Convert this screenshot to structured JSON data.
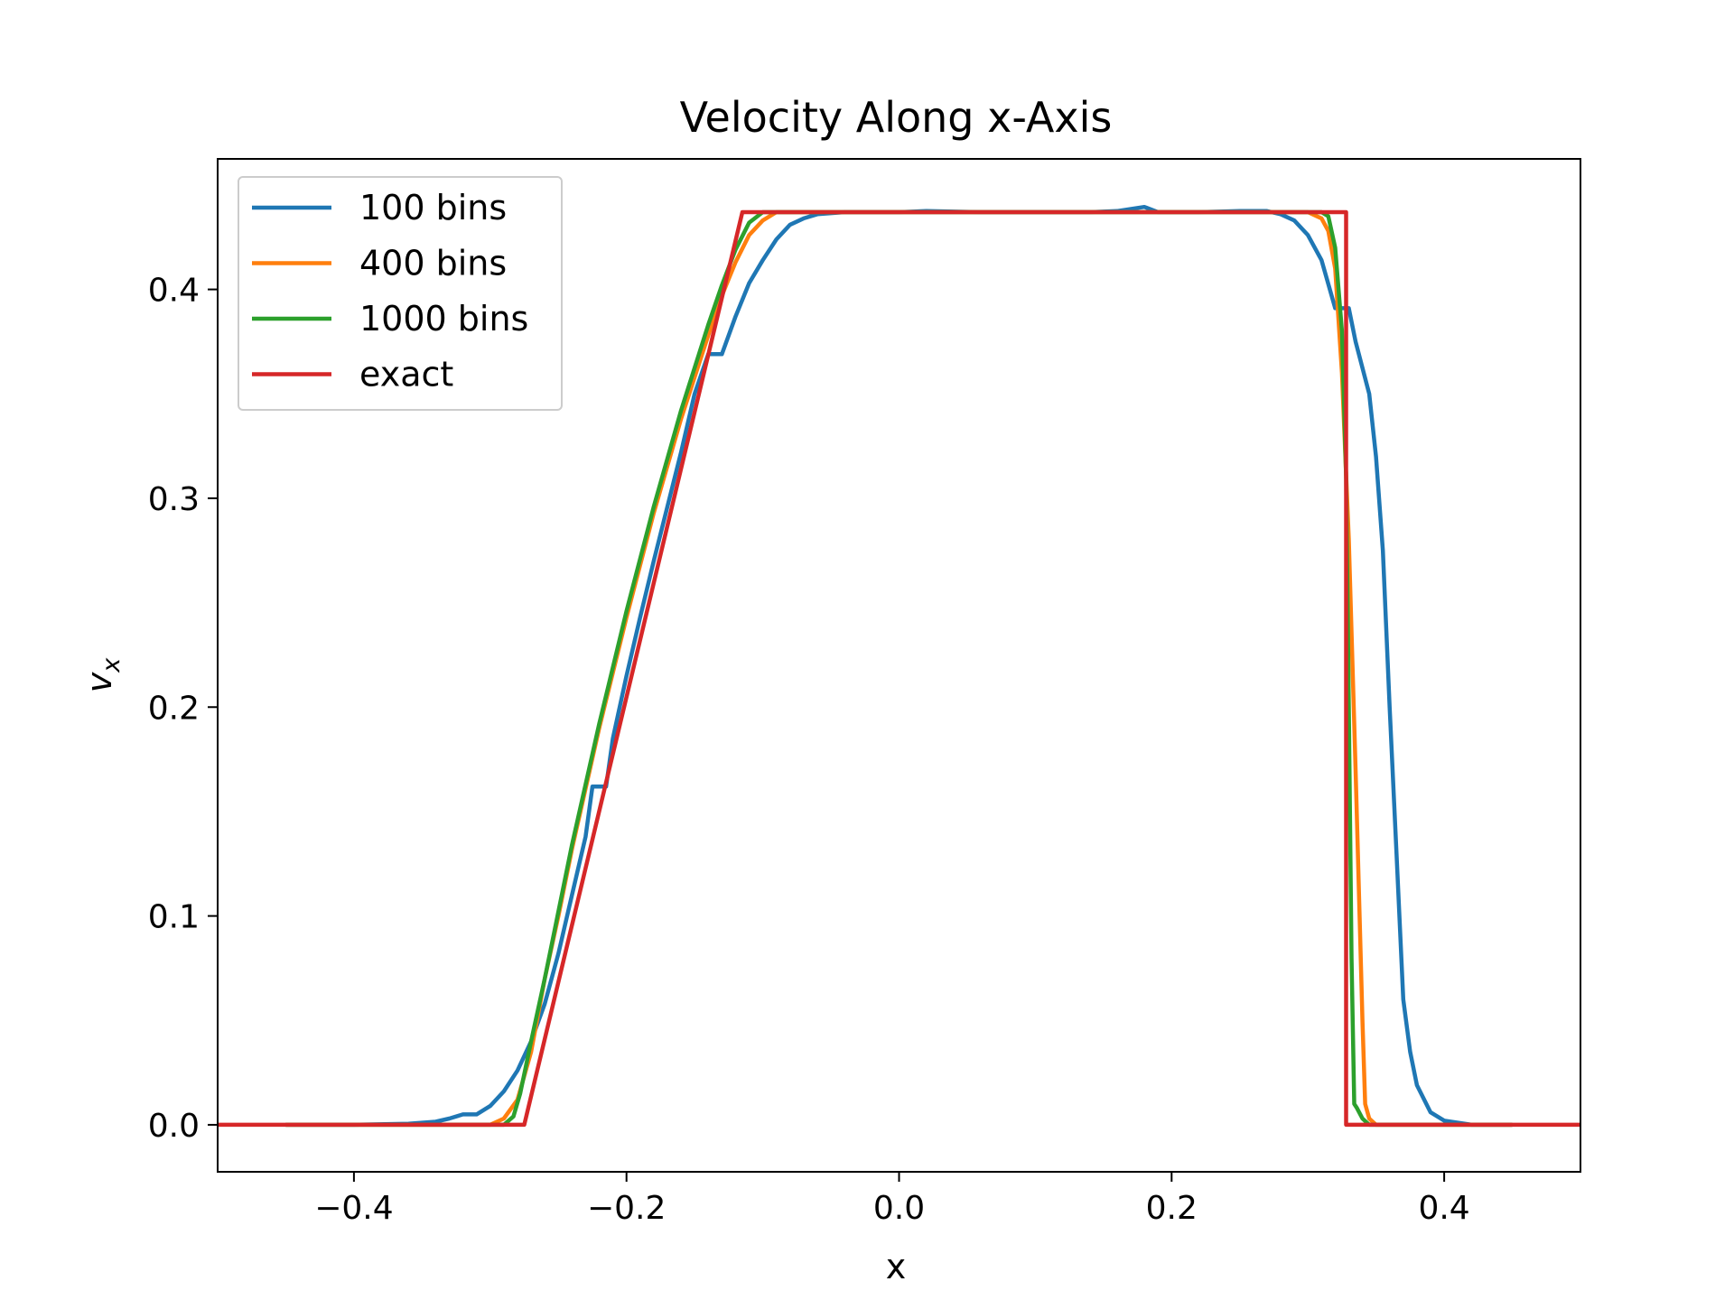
{
  "chart_data": {
    "type": "line",
    "title": "Velocity Along x-Axis",
    "xlabel": "x",
    "ylabel_main": "v",
    "ylabel_sub": "x",
    "xlim": [
      -0.5,
      0.5
    ],
    "ylim": [
      -0.0225,
      0.4625
    ],
    "xticks": [
      -0.4,
      -0.2,
      0.0,
      0.2,
      0.4
    ],
    "xtick_labels": [
      "−0.4",
      "−0.2",
      "0.0",
      "0.2",
      "0.4"
    ],
    "yticks": [
      0.0,
      0.1,
      0.2,
      0.3,
      0.4
    ],
    "ytick_labels": [
      "0.0",
      "0.1",
      "0.2",
      "0.3",
      "0.4"
    ],
    "grid": false,
    "legend_position": "top-left",
    "series": [
      {
        "name": "100 bins",
        "color": "#1f77b4",
        "points": [
          [
            -0.45,
            0.0
          ],
          [
            -0.4,
            0.0
          ],
          [
            -0.36,
            0.0005
          ],
          [
            -0.34,
            0.0015
          ],
          [
            -0.33,
            0.003
          ],
          [
            -0.32,
            0.005
          ],
          [
            -0.31,
            0.005
          ],
          [
            -0.3,
            0.009
          ],
          [
            -0.29,
            0.016
          ],
          [
            -0.28,
            0.026
          ],
          [
            -0.27,
            0.04
          ],
          [
            -0.26,
            0.058
          ],
          [
            -0.25,
            0.082
          ],
          [
            -0.24,
            0.11
          ],
          [
            -0.23,
            0.138
          ],
          [
            -0.225,
            0.162
          ],
          [
            -0.215,
            0.162
          ],
          [
            -0.21,
            0.185
          ],
          [
            -0.2,
            0.215
          ],
          [
            -0.19,
            0.243
          ],
          [
            -0.18,
            0.27
          ],
          [
            -0.17,
            0.296
          ],
          [
            -0.16,
            0.322
          ],
          [
            -0.15,
            0.35
          ],
          [
            -0.14,
            0.369
          ],
          [
            -0.13,
            0.369
          ],
          [
            -0.12,
            0.387
          ],
          [
            -0.11,
            0.403
          ],
          [
            -0.1,
            0.414
          ],
          [
            -0.09,
            0.424
          ],
          [
            -0.08,
            0.431
          ],
          [
            -0.07,
            0.434
          ],
          [
            -0.06,
            0.436
          ],
          [
            -0.04,
            0.437
          ],
          [
            0.0,
            0.437
          ],
          [
            0.02,
            0.4375
          ],
          [
            0.06,
            0.437
          ],
          [
            0.1,
            0.437
          ],
          [
            0.14,
            0.437
          ],
          [
            0.16,
            0.4375
          ],
          [
            0.18,
            0.4395
          ],
          [
            0.19,
            0.437
          ],
          [
            0.22,
            0.437
          ],
          [
            0.25,
            0.4375
          ],
          [
            0.27,
            0.4375
          ],
          [
            0.28,
            0.436
          ],
          [
            0.29,
            0.433
          ],
          [
            0.3,
            0.426
          ],
          [
            0.31,
            0.414
          ],
          [
            0.32,
            0.391
          ],
          [
            0.33,
            0.391
          ],
          [
            0.335,
            0.375
          ],
          [
            0.345,
            0.35
          ],
          [
            0.35,
            0.32
          ],
          [
            0.355,
            0.275
          ],
          [
            0.36,
            0.2
          ],
          [
            0.365,
            0.13
          ],
          [
            0.37,
            0.06
          ],
          [
            0.375,
            0.035
          ],
          [
            0.38,
            0.019
          ],
          [
            0.39,
            0.006
          ],
          [
            0.4,
            0.002
          ],
          [
            0.42,
            0.0
          ],
          [
            0.45,
            0.0
          ]
        ]
      },
      {
        "name": "400 bins",
        "color": "#ff7f0e",
        "points": [
          [
            -0.45,
            0.0
          ],
          [
            -0.3,
            0.0
          ],
          [
            -0.29,
            0.003
          ],
          [
            -0.28,
            0.012
          ],
          [
            -0.27,
            0.035
          ],
          [
            -0.26,
            0.07
          ],
          [
            -0.25,
            0.1
          ],
          [
            -0.24,
            0.132
          ],
          [
            -0.22,
            0.19
          ],
          [
            -0.2,
            0.243
          ],
          [
            -0.18,
            0.293
          ],
          [
            -0.16,
            0.338
          ],
          [
            -0.14,
            0.378
          ],
          [
            -0.13,
            0.397
          ],
          [
            -0.12,
            0.413
          ],
          [
            -0.11,
            0.426
          ],
          [
            -0.1,
            0.433
          ],
          [
            -0.09,
            0.437
          ],
          [
            0.0,
            0.437
          ],
          [
            0.3,
            0.437
          ],
          [
            0.31,
            0.434
          ],
          [
            0.315,
            0.428
          ],
          [
            0.32,
            0.41
          ],
          [
            0.325,
            0.36
          ],
          [
            0.33,
            0.28
          ],
          [
            0.335,
            0.17
          ],
          [
            0.34,
            0.05
          ],
          [
            0.342,
            0.01
          ],
          [
            0.345,
            0.003
          ],
          [
            0.35,
            0.0
          ],
          [
            0.45,
            0.0
          ]
        ]
      },
      {
        "name": "1000 bins",
        "color": "#2ca02c",
        "points": [
          [
            -0.45,
            0.0
          ],
          [
            -0.29,
            0.0
          ],
          [
            -0.283,
            0.004
          ],
          [
            -0.278,
            0.015
          ],
          [
            -0.27,
            0.04
          ],
          [
            -0.26,
            0.07
          ],
          [
            -0.24,
            0.134
          ],
          [
            -0.22,
            0.192
          ],
          [
            -0.2,
            0.246
          ],
          [
            -0.18,
            0.296
          ],
          [
            -0.16,
            0.342
          ],
          [
            -0.14,
            0.383
          ],
          [
            -0.13,
            0.402
          ],
          [
            -0.12,
            0.419
          ],
          [
            -0.11,
            0.432
          ],
          [
            -0.1,
            0.437
          ],
          [
            0.0,
            0.437
          ],
          [
            0.31,
            0.437
          ],
          [
            0.315,
            0.435
          ],
          [
            0.32,
            0.42
          ],
          [
            0.325,
            0.38
          ],
          [
            0.328,
            0.31
          ],
          [
            0.33,
            0.2
          ],
          [
            0.332,
            0.08
          ],
          [
            0.334,
            0.01
          ],
          [
            0.336,
            0.008
          ],
          [
            0.34,
            0.003
          ],
          [
            0.345,
            0.0
          ],
          [
            0.45,
            0.0
          ]
        ]
      },
      {
        "name": "exact",
        "color": "#d62728",
        "points": [
          [
            -0.5,
            0.0
          ],
          [
            -0.275,
            0.0
          ],
          [
            -0.115,
            0.437
          ],
          [
            0.328,
            0.437
          ],
          [
            0.328,
            0.0
          ],
          [
            0.5,
            0.0
          ]
        ]
      }
    ]
  }
}
